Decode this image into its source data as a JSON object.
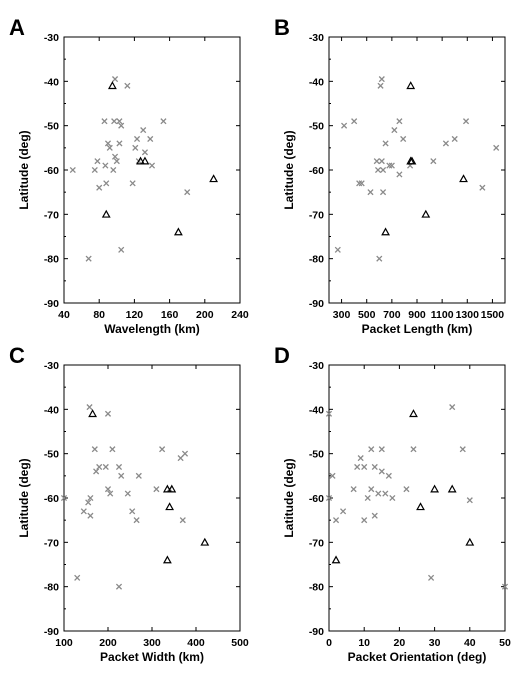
{
  "chart_data": [
    {
      "type": "scatter",
      "panel": "A",
      "xlabel": "Wavelength (km)",
      "ylabel": "Latitude (deg)",
      "xlim": [
        40,
        240
      ],
      "ylim": [
        -90,
        -30
      ],
      "xticks": [
        "40",
        "80",
        "120",
        "160",
        "200",
        "240"
      ],
      "yticks": [
        "-30",
        "-40",
        "-50",
        "-60",
        "-70",
        "-80",
        "-90"
      ],
      "series": [
        {
          "marker": "x",
          "color": "#8a8a8a",
          "x": [
            98,
            112,
            97,
            103,
            86,
            105,
            153,
            130,
            123,
            138,
            103,
            90,
            92,
            98,
            121,
            132,
            50,
            78,
            87,
            100,
            125,
            96,
            75,
            140,
            118,
            88,
            80,
            180,
            105,
            68
          ],
          "y": [
            -39.5,
            -41,
            -49,
            -49,
            -49,
            -50,
            -49,
            -51,
            -53,
            -53,
            -54,
            -54,
            -55,
            -57,
            -55,
            -56,
            -60,
            -58,
            -59,
            -58,
            -58,
            -60,
            -60,
            -59,
            -63,
            -63,
            -64,
            -65,
            -78,
            -80
          ]
        },
        {
          "marker": "triangle",
          "color": "#000000",
          "x": [
            95,
            127,
            132,
            88,
            210,
            170
          ],
          "y": [
            -41,
            -58,
            -58,
            -70,
            -62,
            -74
          ]
        }
      ]
    },
    {
      "type": "scatter",
      "panel": "B",
      "xlabel": "Packet Length (km)",
      "ylabel": "Latitude (deg)",
      "xlim": [
        200,
        1600
      ],
      "ylim": [
        -90,
        -30
      ],
      "xticks": [
        "300",
        "500",
        "700",
        "900",
        "1100",
        "1300",
        "1500"
      ],
      "yticks": [
        "-30",
        "-40",
        "-50",
        "-60",
        "-70",
        "-80",
        "-90"
      ],
      "series": [
        {
          "marker": "x",
          "color": "#8a8a8a",
          "x": [
            620,
            610,
            760,
            320,
            400,
            720,
            650,
            790,
            1290,
            1200,
            1130,
            1530,
            580,
            620,
            680,
            630,
            590,
            700,
            760,
            845,
            1030,
            440,
            460,
            530,
            630,
            1420,
            270,
            600
          ],
          "y": [
            -39.5,
            -41,
            -49,
            -50,
            -49,
            -51,
            -54,
            -53,
            -49,
            -53,
            -54,
            -55,
            -58,
            -58,
            -59,
            -60,
            -60,
            -59,
            -61,
            -59,
            -58,
            -63,
            -63,
            -65,
            -65,
            -64,
            -78,
            -80
          ]
        },
        {
          "marker": "triangle",
          "color": "#000000",
          "x": [
            850,
            850,
            860,
            1270,
            970,
            650
          ],
          "y": [
            -41,
            -58,
            -58,
            -62,
            -70,
            -74
          ]
        }
      ]
    },
    {
      "type": "scatter",
      "panel": "C",
      "xlabel": "Packet Width (km)",
      "ylabel": "Latitude (deg)",
      "xlim": [
        100,
        500
      ],
      "ylim": [
        -90,
        -30
      ],
      "xticks": [
        "100",
        "200",
        "300",
        "400",
        "500"
      ],
      "yticks": [
        "-30",
        "-40",
        "-50",
        "-60",
        "-70",
        "-80",
        "-90"
      ],
      "series": [
        {
          "marker": "x",
          "color": "#8a8a8a",
          "x": [
            158,
            200,
            170,
            210,
            323,
            375,
            365,
            180,
            195,
            225,
            173,
            230,
            270,
            200,
            205,
            100,
            160,
            155,
            310,
            340,
            145,
            245,
            255,
            265,
            160,
            370,
            130,
            225
          ],
          "y": [
            -39.5,
            -41,
            -49,
            -49,
            -49,
            -50,
            -51,
            -53,
            -53,
            -53,
            -54,
            -55,
            -55,
            -58,
            -59,
            -60,
            -60,
            -61,
            -58,
            -58,
            -63,
            -59,
            -63,
            -65,
            -64,
            -65,
            -78,
            -80
          ]
        },
        {
          "marker": "triangle",
          "color": "#000000",
          "x": [
            165,
            335,
            345,
            340,
            420,
            335
          ],
          "y": [
            -41,
            -58,
            -58,
            -62,
            -70,
            -74
          ]
        }
      ]
    },
    {
      "type": "scatter",
      "panel": "D",
      "xlabel": "Packet Orientation (deg)",
      "ylabel": "Latitude (deg)",
      "xlim": [
        0,
        50
      ],
      "ylim": [
        -90,
        -30
      ],
      "xticks": [
        "0",
        "10",
        "20",
        "30",
        "40",
        "50"
      ],
      "yticks": [
        "-30",
        "-40",
        "-50",
        "-60",
        "-70",
        "-80",
        "-90"
      ],
      "series": [
        {
          "marker": "x",
          "color": "#8a8a8a",
          "x": [
            35,
            0,
            12,
            15,
            24,
            38,
            8,
            10,
            13,
            9,
            15,
            1,
            17,
            12,
            14,
            16,
            7,
            11,
            18,
            22,
            0,
            4,
            10,
            2,
            13,
            40,
            29,
            50
          ],
          "y": [
            -39.5,
            -41,
            -49,
            -49,
            -49,
            -49,
            -53,
            -53,
            -53,
            -51,
            -54,
            -55,
            -55,
            -58,
            -59,
            -59,
            -58,
            -60,
            -60,
            -58,
            -60,
            -63,
            -65,
            -65,
            -64,
            -60.5,
            -78,
            -80
          ]
        },
        {
          "marker": "triangle",
          "color": "#000000",
          "x": [
            24,
            30,
            35,
            26,
            40,
            2
          ],
          "y": [
            -41,
            -58,
            -58,
            -62,
            -70,
            -74
          ]
        }
      ]
    }
  ]
}
